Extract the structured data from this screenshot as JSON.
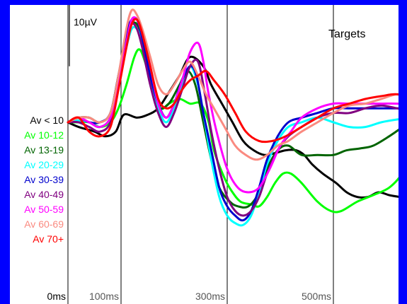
{
  "chart_data": {
    "type": "line",
    "title": "Targets",
    "scale_label": "10µV",
    "xlabel": "",
    "ylabel": "",
    "x_unit": "ms",
    "x_ticks": [
      {
        "value": 0,
        "label": "0ms"
      },
      {
        "value": 100,
        "label": "100ms"
      },
      {
        "value": 300,
        "label": "300ms"
      },
      {
        "value": 500,
        "label": "500ms"
      }
    ],
    "xlim": [
      -10,
      660
    ],
    "ylim": [
      -15,
      14
    ],
    "scale_bar": {
      "from": 6,
      "to": 16
    },
    "grid": "vertical lines at 100, 300, 500 ms",
    "legend_position": "left",
    "background_color": "#ffffff",
    "frame_color": "#0000ff",
    "series": [
      {
        "name": "Av < 10",
        "color": "#000000",
        "points": [
          [
            0,
            0
          ],
          [
            20,
            -0.5
          ],
          [
            50,
            -1
          ],
          [
            70,
            -1.5
          ],
          [
            90,
            -1
          ],
          [
            105,
            0.8
          ],
          [
            130,
            0.5
          ],
          [
            150,
            0.8
          ],
          [
            170,
            1.5
          ],
          [
            190,
            3.2
          ],
          [
            210,
            5
          ],
          [
            230,
            7
          ],
          [
            255,
            6
          ],
          [
            270,
            4
          ],
          [
            290,
            2
          ],
          [
            310,
            0
          ],
          [
            330,
            -2
          ],
          [
            350,
            -3
          ],
          [
            370,
            -3.5
          ],
          [
            390,
            -3.3
          ],
          [
            410,
            -3
          ],
          [
            430,
            -3
          ],
          [
            445,
            -3.5
          ],
          [
            460,
            -4.5
          ],
          [
            480,
            -5.5
          ],
          [
            505,
            -6.5
          ],
          [
            525,
            -7.5
          ],
          [
            545,
            -8
          ],
          [
            565,
            -8
          ],
          [
            585,
            -7.5
          ],
          [
            605,
            -7.8
          ],
          [
            625,
            -8
          ],
          [
            650,
            -8.2
          ]
        ]
      },
      {
        "name": "Av 10-12",
        "color": "#00ff00",
        "points": [
          [
            0,
            0
          ],
          [
            20,
            0
          ],
          [
            40,
            0
          ],
          [
            60,
            -0.5
          ],
          [
            80,
            0
          ],
          [
            95,
            1.5
          ],
          [
            110,
            4
          ],
          [
            125,
            7
          ],
          [
            135,
            7.8
          ],
          [
            145,
            6.5
          ],
          [
            160,
            3.5
          ],
          [
            175,
            1.5
          ],
          [
            190,
            2
          ],
          [
            210,
            2.5
          ],
          [
            230,
            2
          ],
          [
            250,
            2
          ],
          [
            265,
            0
          ],
          [
            275,
            -3
          ],
          [
            295,
            -6
          ],
          [
            310,
            -7.5
          ],
          [
            325,
            -8.5
          ],
          [
            345,
            -8.8
          ],
          [
            360,
            -9
          ],
          [
            375,
            -8
          ],
          [
            390,
            -6.5
          ],
          [
            405,
            -5.5
          ],
          [
            420,
            -5.5
          ],
          [
            440,
            -6.5
          ],
          [
            470,
            -8.5
          ],
          [
            495,
            -9.5
          ],
          [
            515,
            -9.5
          ],
          [
            545,
            -8.5
          ],
          [
            575,
            -7.8
          ],
          [
            605,
            -7
          ],
          [
            630,
            -5.5
          ],
          [
            650,
            -3.5
          ]
        ]
      },
      {
        "name": "Av 13-19",
        "color": "#006400",
        "points": [
          [
            0,
            0
          ],
          [
            20,
            0.5
          ],
          [
            40,
            0.5
          ],
          [
            60,
            0
          ],
          [
            80,
            1
          ],
          [
            95,
            5
          ],
          [
            110,
            9
          ],
          [
            120,
            10.5
          ],
          [
            130,
            10.5
          ],
          [
            140,
            9
          ],
          [
            150,
            6
          ],
          [
            160,
            3
          ],
          [
            170,
            1.5
          ],
          [
            190,
            2
          ],
          [
            210,
            4
          ],
          [
            225,
            5.5
          ],
          [
            240,
            4
          ],
          [
            255,
            0
          ],
          [
            270,
            -4
          ],
          [
            285,
            -7
          ],
          [
            305,
            -8.5
          ],
          [
            320,
            -9
          ],
          [
            340,
            -9
          ],
          [
            360,
            -7.5
          ],
          [
            375,
            -5
          ],
          [
            395,
            -3
          ],
          [
            415,
            -2.5
          ],
          [
            440,
            -3.5
          ],
          [
            470,
            -3.5
          ],
          [
            500,
            -3.5
          ],
          [
            525,
            -3
          ],
          [
            550,
            -2.8
          ],
          [
            575,
            -2.5
          ],
          [
            605,
            -1.5
          ],
          [
            630,
            -0.5
          ],
          [
            650,
            0.5
          ]
        ]
      },
      {
        "name": "Av 20-29",
        "color": "#00ffff",
        "points": [
          [
            0,
            0
          ],
          [
            20,
            0.2
          ],
          [
            40,
            0
          ],
          [
            60,
            -0.5
          ],
          [
            80,
            0.5
          ],
          [
            95,
            4
          ],
          [
            110,
            8
          ],
          [
            120,
            10
          ],
          [
            130,
            10
          ],
          [
            140,
            8.5
          ],
          [
            155,
            5
          ],
          [
            170,
            1.5
          ],
          [
            185,
            0
          ],
          [
            200,
            1.5
          ],
          [
            215,
            4
          ],
          [
            230,
            6
          ],
          [
            245,
            4
          ],
          [
            258,
            0
          ],
          [
            270,
            -4
          ],
          [
            285,
            -8
          ],
          [
            300,
            -10
          ],
          [
            315,
            -10.8
          ],
          [
            330,
            -11
          ],
          [
            345,
            -10
          ],
          [
            360,
            -7.5
          ],
          [
            375,
            -4.5
          ],
          [
            395,
            -2
          ],
          [
            415,
            -0.5
          ],
          [
            440,
            0
          ],
          [
            470,
            0.5
          ],
          [
            500,
            0
          ],
          [
            530,
            -0.5
          ],
          [
            560,
            -0.5
          ],
          [
            590,
            0
          ],
          [
            620,
            0.3
          ],
          [
            650,
            0.5
          ]
        ]
      },
      {
        "name": "Av 30-39",
        "color": "#0000cd",
        "points": [
          [
            0,
            0
          ],
          [
            20,
            0.5
          ],
          [
            40,
            0
          ],
          [
            60,
            0
          ],
          [
            80,
            1
          ],
          [
            95,
            5
          ],
          [
            110,
            9.5
          ],
          [
            120,
            11
          ],
          [
            130,
            11
          ],
          [
            140,
            9
          ],
          [
            155,
            5
          ],
          [
            170,
            2
          ],
          [
            185,
            0.5
          ],
          [
            200,
            2
          ],
          [
            215,
            4.5
          ],
          [
            230,
            6
          ],
          [
            242,
            5
          ],
          [
            255,
            1
          ],
          [
            270,
            -3
          ],
          [
            285,
            -7
          ],
          [
            300,
            -9
          ],
          [
            315,
            -10
          ],
          [
            330,
            -10.5
          ],
          [
            345,
            -9.5
          ],
          [
            360,
            -7
          ],
          [
            375,
            -4
          ],
          [
            395,
            -1.5
          ],
          [
            415,
            0
          ],
          [
            440,
            0.5
          ],
          [
            470,
            1
          ],
          [
            500,
            1.5
          ],
          [
            530,
            1.5
          ],
          [
            560,
            1.5
          ],
          [
            590,
            1.5
          ],
          [
            620,
            1.5
          ],
          [
            650,
            1.5
          ]
        ]
      },
      {
        "name": "Av 40-49",
        "color": "#800080",
        "points": [
          [
            0,
            0
          ],
          [
            20,
            0
          ],
          [
            40,
            -0.5
          ],
          [
            60,
            -1
          ],
          [
            80,
            0
          ],
          [
            95,
            4
          ],
          [
            110,
            8.5
          ],
          [
            120,
            10.5
          ],
          [
            130,
            10
          ],
          [
            140,
            8
          ],
          [
            155,
            4
          ],
          [
            170,
            1
          ],
          [
            185,
            -0.5
          ],
          [
            200,
            1
          ],
          [
            215,
            3.5
          ],
          [
            230,
            6
          ],
          [
            245,
            6.5
          ],
          [
            258,
            3
          ],
          [
            270,
            -1
          ],
          [
            285,
            -5
          ],
          [
            300,
            -8
          ],
          [
            315,
            -9.5
          ],
          [
            330,
            -10
          ],
          [
            345,
            -9.5
          ],
          [
            360,
            -8
          ],
          [
            375,
            -5.5
          ],
          [
            395,
            -3
          ],
          [
            415,
            -1.5
          ],
          [
            440,
            -0.5
          ],
          [
            470,
            0.5
          ],
          [
            500,
            1
          ],
          [
            530,
            1
          ],
          [
            560,
            1.5
          ],
          [
            590,
            1.8
          ],
          [
            620,
            1.5
          ],
          [
            650,
            1.2
          ]
        ]
      },
      {
        "name": "Av 50-59",
        "color": "#ff00ff",
        "points": [
          [
            0,
            0
          ],
          [
            20,
            0.5
          ],
          [
            40,
            0
          ],
          [
            60,
            -0.5
          ],
          [
            80,
            0.5
          ],
          [
            95,
            4
          ],
          [
            110,
            8.5
          ],
          [
            120,
            11
          ],
          [
            130,
            11
          ],
          [
            140,
            9.5
          ],
          [
            155,
            6
          ],
          [
            170,
            2
          ],
          [
            185,
            0.5
          ],
          [
            200,
            2
          ],
          [
            215,
            4.5
          ],
          [
            230,
            7.5
          ],
          [
            245,
            8.5
          ],
          [
            255,
            6.5
          ],
          [
            265,
            3
          ],
          [
            280,
            -1
          ],
          [
            300,
            -5
          ],
          [
            320,
            -7
          ],
          [
            340,
            -7.5
          ],
          [
            360,
            -7
          ],
          [
            380,
            -5
          ],
          [
            400,
            -2.5
          ],
          [
            420,
            -1
          ],
          [
            440,
            0.5
          ],
          [
            470,
            1.5
          ],
          [
            500,
            2
          ],
          [
            530,
            2
          ],
          [
            560,
            2
          ],
          [
            590,
            2
          ],
          [
            620,
            2
          ],
          [
            650,
            1.8
          ]
        ]
      },
      {
        "name": "Av 60-69",
        "color": "#fa8a80",
        "points": [
          [
            0,
            0
          ],
          [
            20,
            0.5
          ],
          [
            40,
            0.5
          ],
          [
            60,
            0
          ],
          [
            80,
            1
          ],
          [
            95,
            5
          ],
          [
            110,
            10
          ],
          [
            120,
            12
          ],
          [
            130,
            11.5
          ],
          [
            140,
            10
          ],
          [
            155,
            7
          ],
          [
            170,
            4
          ],
          [
            185,
            3
          ],
          [
            200,
            4
          ],
          [
            215,
            5.5
          ],
          [
            230,
            6.5
          ],
          [
            245,
            5
          ],
          [
            260,
            3
          ],
          [
            275,
            1.5
          ],
          [
            295,
            -0.5
          ],
          [
            315,
            -2.5
          ],
          [
            335,
            -3.5
          ],
          [
            355,
            -4
          ],
          [
            375,
            -3.5
          ],
          [
            395,
            -2.5
          ],
          [
            415,
            -2
          ],
          [
            440,
            -1
          ],
          [
            470,
            0
          ],
          [
            500,
            1
          ],
          [
            530,
            1.8
          ],
          [
            560,
            2
          ],
          [
            590,
            2.5
          ],
          [
            620,
            3
          ],
          [
            650,
            2.8
          ]
        ]
      },
      {
        "name": "Av 70+",
        "color": "#ff0000",
        "points": [
          [
            0,
            0
          ],
          [
            20,
            0.5
          ],
          [
            40,
            -1
          ],
          [
            60,
            -1.5
          ],
          [
            80,
            -0.5
          ],
          [
            95,
            3.5
          ],
          [
            110,
            8
          ],
          [
            120,
            10.5
          ],
          [
            130,
            11
          ],
          [
            140,
            9.5
          ],
          [
            155,
            6
          ],
          [
            170,
            2.5
          ],
          [
            185,
            1.5
          ],
          [
            200,
            2
          ],
          [
            215,
            3.5
          ],
          [
            230,
            4.5
          ],
          [
            245,
            5
          ],
          [
            260,
            5.5
          ],
          [
            275,
            4.5
          ],
          [
            295,
            3
          ],
          [
            315,
            1
          ],
          [
            335,
            -1
          ],
          [
            360,
            -2
          ],
          [
            385,
            -2
          ],
          [
            410,
            -1.5
          ],
          [
            440,
            -0.5
          ],
          [
            470,
            0.5
          ],
          [
            500,
            1.5
          ],
          [
            530,
            2
          ],
          [
            560,
            2.5
          ],
          [
            590,
            2.8
          ],
          [
            620,
            3
          ],
          [
            650,
            2.5
          ]
        ]
      }
    ]
  }
}
